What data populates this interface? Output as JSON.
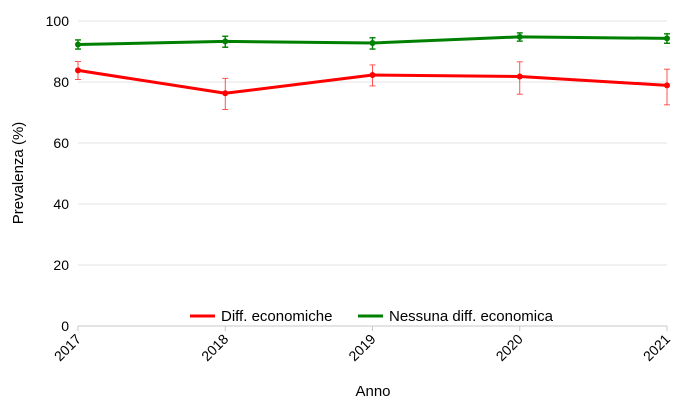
{
  "chart_data": {
    "type": "line",
    "title": "",
    "xlabel": "Anno",
    "ylabel": "Prevalenza (%)",
    "categories": [
      "2017",
      "2018",
      "2019",
      "2020",
      "2021"
    ],
    "ylim": [
      0,
      100
    ],
    "yticks": [
      0,
      20,
      40,
      60,
      80,
      100
    ],
    "grid": true,
    "legend_position": "bottom-center",
    "error_bars": true,
    "series": [
      {
        "name": "Diff. economiche",
        "color": "#ff0000",
        "values": [
          83.8,
          76.3,
          82.3,
          81.8,
          78.9
        ],
        "lower": [
          80.8,
          71.0,
          78.7,
          76.0,
          72.5
        ],
        "upper": [
          86.7,
          81.2,
          85.6,
          86.6,
          84.2
        ]
      },
      {
        "name": "Nessuna diff. economica",
        "color": "#008000",
        "values": [
          92.3,
          93.3,
          92.8,
          94.8,
          94.3
        ],
        "lower": [
          90.8,
          91.4,
          90.8,
          93.4,
          92.7
        ],
        "upper": [
          93.8,
          95.0,
          94.5,
          96.1,
          95.8
        ]
      }
    ]
  }
}
